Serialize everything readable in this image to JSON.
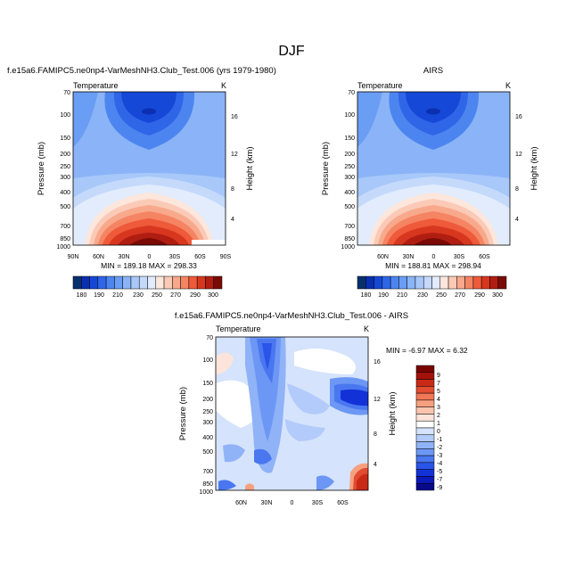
{
  "figure_title": "DJF",
  "colors": {
    "temp_scale": [
      "#08306b",
      "#0a2fb0",
      "#1648d8",
      "#2f66e8",
      "#4d85f0",
      "#6a9df4",
      "#8ab4f7",
      "#a7c8f9",
      "#c5dafb",
      "#e2ecfd",
      "#fde6dc",
      "#fbcab7",
      "#f8a98c",
      "#f58463",
      "#ee5a3a",
      "#d8371f",
      "#b01e12",
      "#7a0a06"
    ],
    "diff_scale": [
      "#08088a",
      "#0b1ab8",
      "#1232d8",
      "#2a55e8",
      "#4a77f0",
      "#6d97f4",
      "#90b2f7",
      "#b3cbfa",
      "#d5e3fc",
      "#ffffff",
      "#fde4da",
      "#fac4ae",
      "#f6a080",
      "#f07856",
      "#e24c30",
      "#c92a18",
      "#a3120a",
      "#7a0404"
    ]
  },
  "chart_data": [
    {
      "type": "heatmap",
      "panel_title": "f.e15a6.FAMIPC5.ne0np4-VarMeshNH3.Club_Test.006 (yrs 1979-1980)",
      "field_label": "Temperature",
      "units": "K",
      "ylabel": "Pressure (mb)",
      "y2label": "Height (km)",
      "pressure_levels": [
        70,
        100,
        150,
        200,
        250,
        300,
        400,
        500,
        700,
        850,
        1000
      ],
      "pressure_ticks": [
        "70",
        "100",
        "150",
        "200",
        "250",
        "300",
        "400",
        "500",
        "700",
        "850",
        "1000"
      ],
      "height_ticks": [
        "16",
        "12",
        "8",
        "4"
      ],
      "x_ticks": [
        "90N",
        "60N",
        "30N",
        "0",
        "30S",
        "60S",
        "90S"
      ],
      "stats": "MIN = 189.18   MAX = 298.33",
      "min": 189.18,
      "max": 298.33,
      "colorbar_ticks": [
        "180",
        "190",
        "200",
        "210",
        "220",
        "230",
        "240",
        "250",
        "260",
        "270",
        "280",
        "290",
        "300"
      ],
      "colorbar_labels": [
        "180",
        "190",
        "210",
        "230",
        "250",
        "270",
        "290",
        "300"
      ]
    },
    {
      "type": "heatmap",
      "panel_title": "AIRS",
      "field_label": "Temperature",
      "units": "K",
      "ylabel": "Pressure (mb)",
      "y2label": "Height (km)",
      "pressure_ticks": [
        "70",
        "100",
        "150",
        "200",
        "250",
        "300",
        "400",
        "500",
        "700",
        "850",
        "1000"
      ],
      "height_ticks": [
        "16",
        "12",
        "8",
        "4"
      ],
      "x_ticks": [
        "60N",
        "30N",
        "0",
        "30S",
        "60S"
      ],
      "stats": "MIN = 188.81   MAX = 298.94",
      "min": 188.81,
      "max": 298.94,
      "colorbar_labels": [
        "180",
        "190",
        "210",
        "230",
        "250",
        "270",
        "290",
        "300"
      ]
    },
    {
      "type": "heatmap",
      "panel_title": "f.e15a6.FAMIPC5.ne0np4-VarMeshNH3.Club_Test.006 - AIRS",
      "field_label": "Temperature",
      "units": "K",
      "ylabel": "Pressure (mb)",
      "y2label": "Height (km)",
      "pressure_ticks": [
        "70",
        "100",
        "150",
        "200",
        "250",
        "300",
        "400",
        "500",
        "700",
        "850",
        "1000"
      ],
      "height_ticks": [
        "16",
        "12",
        "8",
        "4"
      ],
      "x_ticks": [
        "60N",
        "30N",
        "0",
        "30S",
        "60S"
      ],
      "stats": "MIN =  -6.97  MAX =   6.32",
      "min": -6.97,
      "max": 6.32,
      "colorbar_labels": [
        "9",
        "7",
        "5",
        "4",
        "3",
        "2",
        "1",
        "0",
        "-1",
        "-2",
        "-3",
        "-4",
        "-5",
        "-7",
        "-9"
      ]
    }
  ]
}
